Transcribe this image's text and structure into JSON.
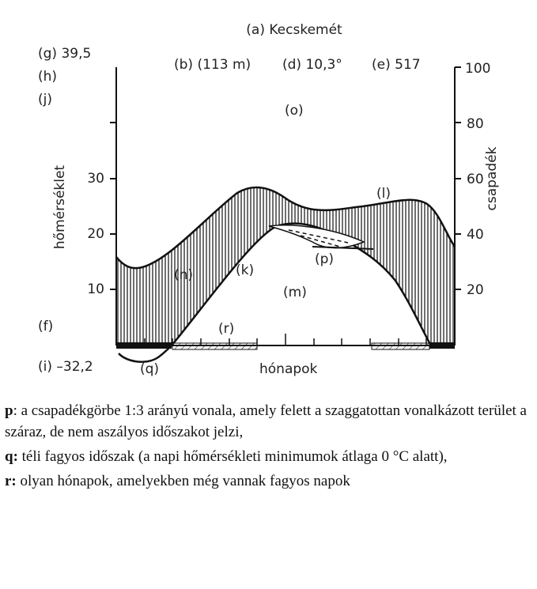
{
  "diagram": {
    "title": "(a) Kecskemét",
    "labels": {
      "g": "(g) 39,5",
      "h": "(h)",
      "j": "(j)",
      "b": "(b) (113 m)",
      "d": "(d) 10,3°",
      "e": "(e) 517",
      "o": "(o)",
      "l": "(l)",
      "p": "(p)",
      "n": "(n)",
      "k": "(k)",
      "m": "(m)",
      "f": "(f)",
      "r": "(r)",
      "i": "(i) –32,2",
      "q": "(q)"
    },
    "left_axis": {
      "label": "hőmérséklet",
      "ticks": [
        "30",
        "20",
        "10"
      ]
    },
    "right_axis": {
      "label": "csapadék",
      "ticks": [
        "100",
        "80",
        "60",
        "40",
        "20"
      ]
    },
    "bottom_axis": {
      "label": "hónapok"
    }
  },
  "notes": [
    {
      "key": "p",
      "text": ": a csapadékgörbe 1:3 arányú vonala, amely felett a szaggatottan vonalkázott terület a száraz, de nem aszályos időszakot jelzi,"
    },
    {
      "key": "q:",
      "text": " téli fagyos időszak (a napi hőmérsékleti minimumok átlaga 0 °C alatt),"
    },
    {
      "key": "r:",
      "text": " olyan hónapok, amelyekben még vannak fagyos napok"
    }
  ]
}
